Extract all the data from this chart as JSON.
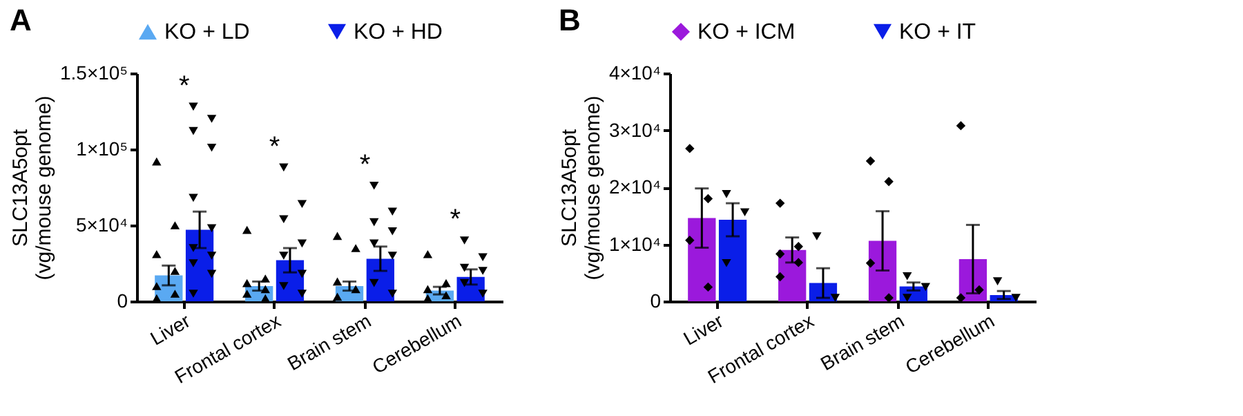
{
  "chart_data": [
    {
      "type": "bar",
      "title": "A",
      "ylabel": "SLC13A5opt\n(vg/mouse genome)",
      "categories": [
        "Liver",
        "Frontal cortex",
        "Brain stem",
        "Cerebellum"
      ],
      "ylim": [
        0,
        150000
      ],
      "yticks": [
        {
          "value": 0,
          "label": "0"
        },
        {
          "value": 50000,
          "label": "5×10⁴"
        },
        {
          "value": 100000,
          "label": "1×10⁵"
        },
        {
          "value": 150000,
          "label": "1.5×10⁵"
        }
      ],
      "grid": false,
      "legend": "top",
      "series": [
        {
          "name": "KO + LD",
          "color": "#5aa9f2",
          "values": [
            17000,
            10000,
            10000,
            7000
          ],
          "errors": [
            6500,
            3000,
            3000,
            2500
          ]
        },
        {
          "name": "KO + HD",
          "color": "#0a1ee8",
          "values": [
            47000,
            27000,
            28000,
            16000
          ],
          "errors": [
            12000,
            8000,
            8000,
            5000
          ]
        },
        {
          "type": "scatter",
          "color": "#000000",
          "marker": "triangle",
          "x": [
            "Liver",
            "Liver",
            "Liver",
            "Liver",
            "Liver",
            "Liver",
            "Liver",
            "Frontal cortex",
            "Frontal cortex",
            "Frontal cortex",
            "Frontal cortex",
            "Frontal cortex",
            "Frontal cortex",
            "Brain stem",
            "Brain stem",
            "Brain stem",
            "Brain stem",
            "Brain stem",
            "Cerebellum",
            "Cerebellum",
            "Cerebellum",
            "Cerebellum",
            "Cerebellum"
          ],
          "values": [
            92000,
            50000,
            31000,
            20000,
            10000,
            5000,
            2000,
            47000,
            15000,
            12000,
            8000,
            5000,
            2000,
            43000,
            35000,
            13000,
            8000,
            3000,
            31000,
            12000,
            8000,
            4000,
            2000
          ]
        },
        {
          "type": "scatter",
          "color": "#000000",
          "marker": "triangle-down",
          "x": [
            "Liver",
            "Liver",
            "Liver",
            "Liver",
            "Liver",
            "Liver",
            "Liver",
            "Liver",
            "Liver",
            "Liver",
            "Liver",
            "Frontal cortex",
            "Frontal cortex",
            "Frontal cortex",
            "Frontal cortex",
            "Frontal cortex",
            "Frontal cortex",
            "Frontal cortex",
            "Frontal cortex",
            "Brain stem",
            "Brain stem",
            "Brain stem",
            "Brain stem",
            "Brain stem",
            "Brain stem",
            "Brain stem",
            "Brain stem",
            "Cerebellum",
            "Cerebellum",
            "Cerebellum",
            "Cerebellum",
            "Cerebellum",
            "Cerebellum"
          ],
          "values": [
            128000,
            120000,
            112000,
            101000,
            68000,
            48000,
            35000,
            30000,
            25000,
            18000,
            5000,
            88000,
            64000,
            54000,
            38000,
            30000,
            18000,
            10000,
            5000,
            76000,
            59000,
            52000,
            46000,
            38000,
            30000,
            12000,
            5000,
            40000,
            29000,
            22000,
            20000,
            12000,
            5000
          ]
        }
      ],
      "annotations": [
        "*",
        "*",
        "*",
        "*"
      ]
    },
    {
      "type": "bar",
      "title": "B",
      "ylabel": "SLC13A5opt\n(vg/mouse genome)",
      "categories": [
        "Liver",
        "Frontal cortex",
        "Brain stem",
        "Cerebellum"
      ],
      "ylim": [
        0,
        40000
      ],
      "yticks": [
        {
          "value": 0,
          "label": "0"
        },
        {
          "value": 10000,
          "label": "1×10⁴"
        },
        {
          "value": 20000,
          "label": "2×10⁴"
        },
        {
          "value": 30000,
          "label": "3×10⁴"
        },
        {
          "value": 40000,
          "label": "4×10⁴"
        }
      ],
      "grid": false,
      "legend": "top",
      "series": [
        {
          "name": "KO + ICM",
          "color": "#9b19dc",
          "values": [
            14600,
            9000,
            10600,
            7400
          ],
          "errors": [
            5200,
            2200,
            5200,
            6000
          ]
        },
        {
          "name": "KO + IT",
          "color": "#0a1ee8",
          "values": [
            14300,
            3200,
            2600,
            1100
          ],
          "errors": [
            2900,
            2600,
            700,
            700
          ]
        },
        {
          "type": "scatter",
          "color": "#000000",
          "marker": "diamond",
          "x": [
            "Liver",
            "Liver",
            "Liver",
            "Liver",
            "Frontal cortex",
            "Frontal cortex",
            "Frontal cortex",
            "Frontal cortex",
            "Frontal cortex",
            "Brain stem",
            "Brain stem",
            "Brain stem",
            "Brain stem",
            "Cerebellum",
            "Cerebellum",
            "Cerebellum"
          ],
          "values": [
            26800,
            18000,
            10700,
            2500,
            17200,
            9600,
            8300,
            6800,
            4300,
            24600,
            21000,
            6700,
            600,
            30800,
            2000,
            600
          ]
        },
        {
          "type": "scatter",
          "color": "#000000",
          "marker": "triangle-down",
          "x": [
            "Liver",
            "Liver",
            "Liver",
            "Frontal cortex",
            "Frontal cortex",
            "Brain stem",
            "Brain stem",
            "Brain stem",
            "Cerebellum",
            "Cerebellum"
          ],
          "values": [
            18800,
            15600,
            6700,
            11400,
            600,
            4400,
            2500,
            600,
            3500,
            600
          ]
        }
      ]
    }
  ]
}
